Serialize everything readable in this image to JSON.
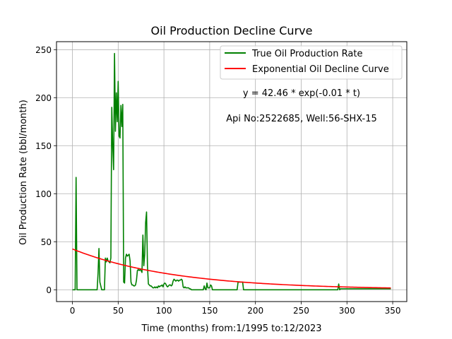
{
  "chart_data": {
    "type": "line",
    "title": "Oil Production Decline Curve",
    "xlabel": "Time (months) from:1/1995 to:12/2023",
    "ylabel": "Oil Production Rate (bbl/month)",
    "xlim": [
      -17.4,
      365.4
    ],
    "ylim": [
      -12.3,
      258.3
    ],
    "xticks": [
      0,
      50,
      100,
      150,
      200,
      250,
      300,
      350
    ],
    "yticks": [
      0,
      50,
      100,
      150,
      200,
      250
    ],
    "grid": true,
    "legend_position": "top-right",
    "annotations": [
      "y = 42.46 * exp(-0.01 * t)",
      "Api No:2522685, Well:56-SHX-15"
    ],
    "series": [
      {
        "name": "True Oil Production Rate",
        "color": "#008000",
        "points": [
          [
            0,
            0
          ],
          [
            3,
            0
          ],
          [
            4,
            117
          ],
          [
            5,
            0
          ],
          [
            27,
            0
          ],
          [
            28,
            17
          ],
          [
            29,
            43
          ],
          [
            30,
            8
          ],
          [
            32,
            0
          ],
          [
            35,
            0
          ],
          [
            36,
            33
          ],
          [
            37,
            29
          ],
          [
            38,
            33
          ],
          [
            39,
            30
          ],
          [
            40,
            29
          ],
          [
            41,
            28
          ],
          [
            42,
            33
          ],
          [
            43,
            190
          ],
          [
            44,
            150
          ],
          [
            45,
            125
          ],
          [
            46,
            246
          ],
          [
            47,
            165
          ],
          [
            48,
            205
          ],
          [
            49,
            175
          ],
          [
            50,
            217
          ],
          [
            51,
            160
          ],
          [
            52,
            158
          ],
          [
            53,
            192
          ],
          [
            54,
            170
          ],
          [
            55,
            193
          ],
          [
            56,
            8
          ],
          [
            57,
            7
          ],
          [
            58,
            33
          ],
          [
            59,
            37
          ],
          [
            60,
            35
          ],
          [
            61,
            36
          ],
          [
            62,
            37
          ],
          [
            63,
            30
          ],
          [
            64,
            8
          ],
          [
            65,
            5
          ],
          [
            66,
            5
          ],
          [
            67,
            4
          ],
          [
            68,
            4
          ],
          [
            69,
            5
          ],
          [
            70,
            10
          ],
          [
            71,
            20
          ],
          [
            72,
            21
          ],
          [
            73,
            20
          ],
          [
            74,
            21
          ],
          [
            75,
            20
          ],
          [
            76,
            18
          ],
          [
            77,
            57
          ],
          [
            78,
            25
          ],
          [
            79,
            37
          ],
          [
            80,
            70
          ],
          [
            81,
            81
          ],
          [
            82,
            25
          ],
          [
            83,
            6
          ],
          [
            84,
            5
          ],
          [
            85,
            4
          ],
          [
            86,
            4
          ],
          [
            87,
            3
          ],
          [
            88,
            2
          ],
          [
            89,
            2
          ],
          [
            90,
            3
          ],
          [
            91,
            2
          ],
          [
            92,
            3
          ],
          [
            93,
            2
          ],
          [
            94,
            4
          ],
          [
            95,
            3
          ],
          [
            96,
            4
          ],
          [
            97,
            4
          ],
          [
            98,
            5
          ],
          [
            99,
            3
          ],
          [
            100,
            6
          ],
          [
            101,
            7
          ],
          [
            102,
            6
          ],
          [
            103,
            4
          ],
          [
            104,
            3
          ],
          [
            105,
            4
          ],
          [
            106,
            5
          ],
          [
            107,
            5
          ],
          [
            108,
            4
          ],
          [
            109,
            5
          ],
          [
            110,
            9
          ],
          [
            111,
            11
          ],
          [
            112,
            10
          ],
          [
            113,
            9
          ],
          [
            114,
            10
          ],
          [
            115,
            10
          ],
          [
            116,
            9
          ],
          [
            117,
            10
          ],
          [
            118,
            10
          ],
          [
            119,
            11
          ],
          [
            120,
            10
          ],
          [
            121,
            3
          ],
          [
            122,
            2
          ],
          [
            123,
            3
          ],
          [
            124,
            2
          ],
          [
            125,
            2
          ],
          [
            126,
            2
          ],
          [
            127,
            2
          ],
          [
            128,
            1
          ],
          [
            129,
            1
          ],
          [
            130,
            0
          ],
          [
            140,
            0
          ],
          [
            143,
            0
          ],
          [
            144,
            4
          ],
          [
            145,
            1
          ],
          [
            146,
            0
          ],
          [
            147,
            7
          ],
          [
            148,
            2
          ],
          [
            149,
            2
          ],
          [
            150,
            2
          ],
          [
            151,
            5
          ],
          [
            152,
            4
          ],
          [
            153,
            0
          ],
          [
            180,
            0
          ],
          [
            181,
            8
          ],
          [
            182,
            8
          ],
          [
            183,
            8
          ],
          [
            184,
            8
          ],
          [
            185,
            8
          ],
          [
            186,
            8
          ],
          [
            187,
            0
          ],
          [
            290,
            0
          ],
          [
            291,
            6
          ],
          [
            292,
            0
          ],
          [
            293,
            1
          ],
          [
            296,
            1
          ],
          [
            300,
            1
          ],
          [
            310,
            1
          ],
          [
            320,
            1
          ],
          [
            330,
            1
          ],
          [
            340,
            1
          ],
          [
            348,
            1
          ]
        ]
      },
      {
        "name": "Exponential Oil Decline Curve",
        "color": "#ff0000",
        "model": {
          "a": 42.46,
          "b": 0.009,
          "x_start": 0,
          "x_end": 348
        }
      }
    ]
  }
}
